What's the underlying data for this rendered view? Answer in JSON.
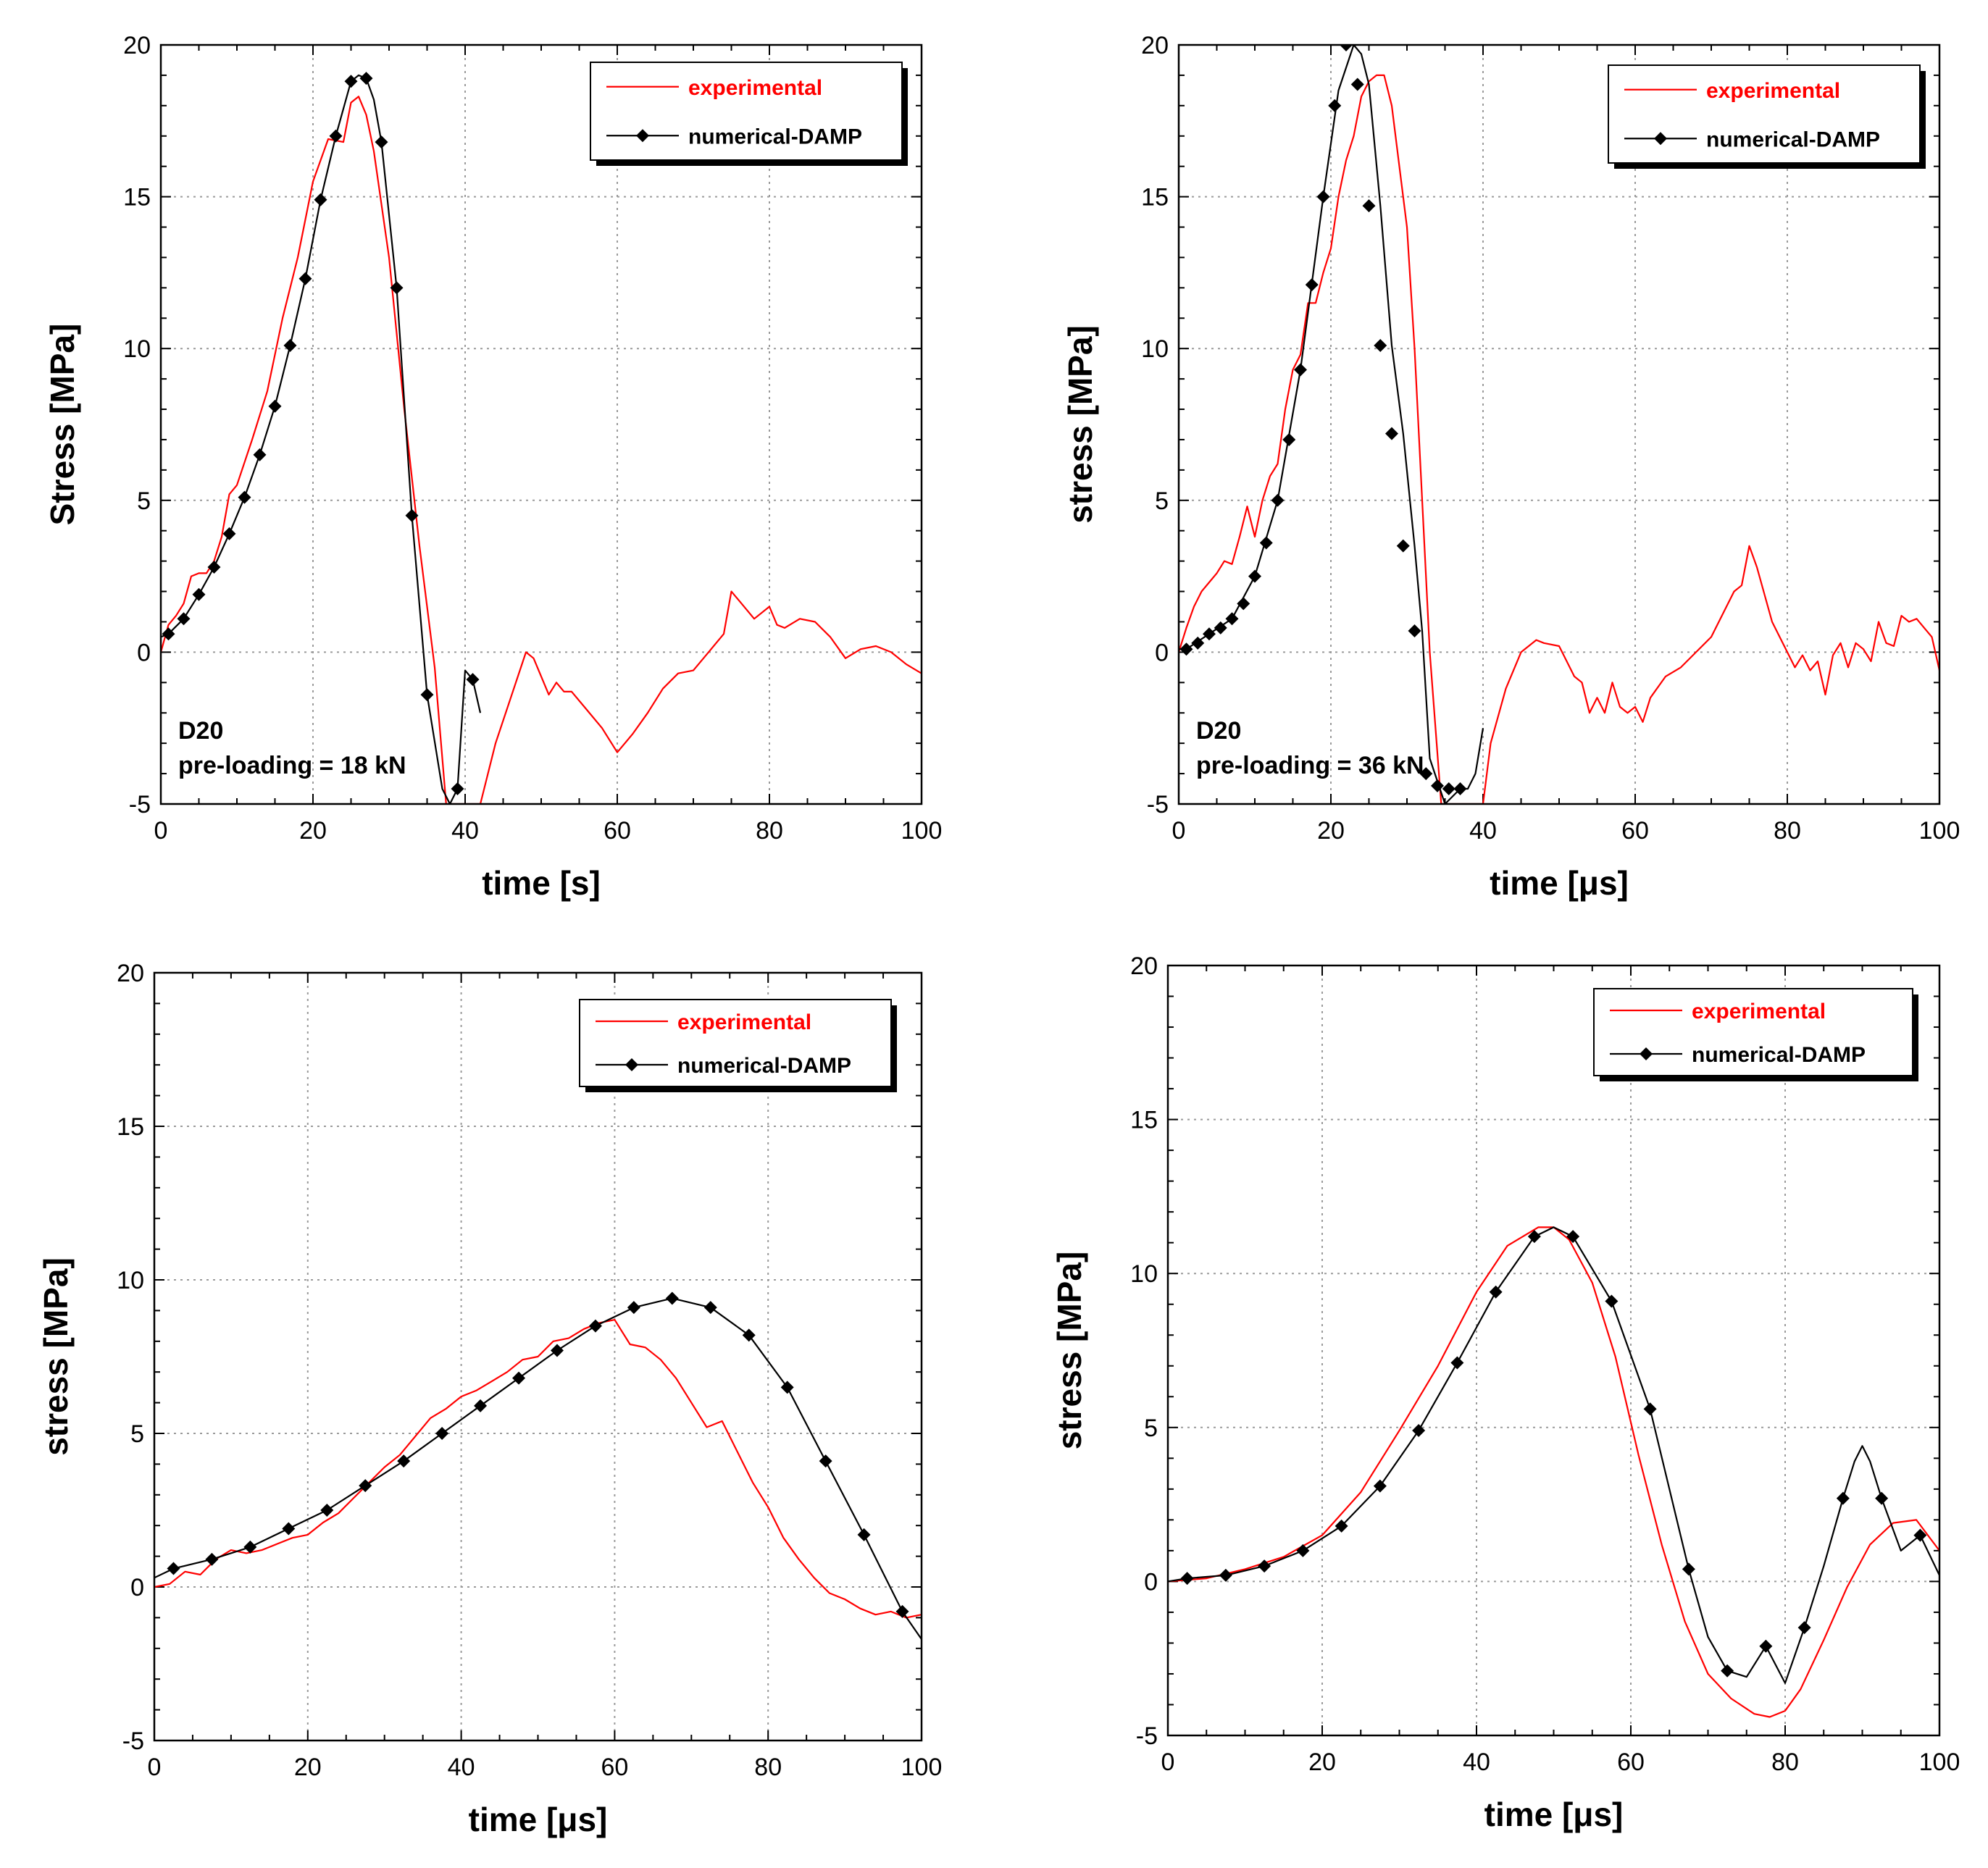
{
  "figure": {
    "description_panels": 4
  },
  "colors": {
    "experimental": "#ff0000",
    "numerical": "#000000",
    "grid": "#9a9a9a",
    "legend_shadow": "#000000"
  },
  "chart_data": [
    {
      "type": "line",
      "xlabel": "time [s]",
      "ylabel": "Stress [MPa]",
      "xlim": [
        0,
        100
      ],
      "ylim": [
        -5,
        20
      ],
      "xticks": [
        "0",
        "20",
        "40",
        "60",
        "80",
        "100"
      ],
      "yticks": [
        "-5",
        "0",
        "5",
        "10",
        "15",
        "20"
      ],
      "legend": [
        "experimental",
        "numerical-DAMP"
      ],
      "legend_position": "top-right",
      "annotation": [
        "D20",
        "pre-loading = 18 kN"
      ],
      "series": [
        {
          "name": "experimental",
          "x": [
            0,
            1,
            2,
            3,
            4,
            5,
            6,
            7,
            8,
            9,
            10,
            12,
            14,
            16,
            18,
            20,
            22,
            24,
            25,
            26,
            27,
            28,
            30,
            32,
            34,
            36,
            37.5,
            42,
            44,
            46,
            48,
            49,
            50,
            51,
            52,
            53,
            54,
            56,
            58,
            60,
            62,
            64,
            66,
            68,
            70,
            72,
            74,
            75,
            76,
            78,
            80,
            81,
            82,
            84,
            86,
            88,
            90,
            92,
            94,
            96,
            98,
            100
          ],
          "y": [
            0,
            0.9,
            1.2,
            1.6,
            2.5,
            2.6,
            2.6,
            3.0,
            3.8,
            5.2,
            5.5,
            7.0,
            8.6,
            11.0,
            13.0,
            15.5,
            16.9,
            16.8,
            18.1,
            18.3,
            17.7,
            16.5,
            13.0,
            8.0,
            3.5,
            -0.5,
            -5,
            -5,
            -3.0,
            -1.5,
            0,
            -0.2,
            -0.8,
            -1.4,
            -1.0,
            -1.3,
            -1.3,
            -1.9,
            -2.5,
            -3.3,
            -2.7,
            -2.0,
            -1.2,
            -0.7,
            -0.6,
            0,
            0.6,
            2.0,
            1.7,
            1.1,
            1.5,
            0.9,
            0.8,
            1.1,
            1.0,
            0.5,
            -0.2,
            0.1,
            0.2,
            0,
            -0.4,
            -0.7
          ]
        },
        {
          "name": "numerical-DAMP",
          "markers": true,
          "x": [
            1,
            3,
            5,
            7,
            9,
            11,
            13,
            15,
            17,
            19,
            21,
            23,
            25,
            27,
            29,
            31,
            33,
            35,
            39,
            41
          ],
          "y": [
            0.6,
            1.1,
            1.9,
            2.8,
            3.9,
            5.1,
            6.5,
            8.1,
            10.1,
            12.3,
            14.9,
            17.0,
            18.8,
            18.9,
            16.8,
            12.0,
            4.5,
            -1.4,
            -4.5,
            -0.9
          ],
          "line_x": [
            0,
            1,
            3,
            5,
            7,
            9,
            11,
            13,
            15,
            17,
            19,
            21,
            23,
            25,
            26,
            27,
            28,
            29,
            31,
            33,
            35,
            37,
            38,
            39,
            40,
            41,
            42
          ],
          "line_y": [
            0.5,
            0.6,
            1.1,
            1.9,
            2.8,
            3.9,
            5.1,
            6.5,
            8.1,
            10.1,
            12.3,
            14.9,
            17.0,
            18.8,
            19.0,
            18.9,
            18.2,
            16.8,
            12.0,
            4.5,
            -1.4,
            -4.5,
            -5,
            -4.5,
            -0.6,
            -0.9,
            -2.0
          ]
        }
      ]
    },
    {
      "type": "line",
      "xlabel": "time [μs]",
      "ylabel": "stress [MPa]",
      "xlim": [
        0,
        100
      ],
      "ylim": [
        -5,
        20
      ],
      "xticks": [
        "0",
        "20",
        "40",
        "60",
        "80",
        "100"
      ],
      "yticks": [
        "-5",
        "0",
        "5",
        "10",
        "15",
        "20"
      ],
      "legend": [
        "experimental",
        "numerical-DAMP"
      ],
      "legend_position": "top-right",
      "annotation": [
        "D20",
        "pre-loading = 36 kN"
      ],
      "series": [
        {
          "name": "experimental",
          "x": [
            0,
            1,
            2,
            3,
            4,
            5,
            6,
            7,
            8,
            9,
            10,
            11,
            12,
            13,
            14,
            15,
            16,
            17,
            18,
            19,
            20,
            21,
            22,
            23,
            24,
            25,
            26,
            27,
            28,
            29,
            30,
            31,
            32,
            33,
            34.5,
            40,
            41,
            43,
            45,
            47,
            48,
            50,
            52,
            53,
            54,
            55,
            56,
            57,
            58,
            59,
            60,
            61,
            62,
            64,
            66,
            68,
            70,
            72,
            73,
            74,
            75,
            76,
            78,
            80,
            81,
            82,
            83,
            84,
            85,
            86,
            87,
            88,
            89,
            90,
            91,
            92,
            93,
            94,
            95,
            96,
            97,
            98,
            99,
            100
          ],
          "y": [
            0,
            0.8,
            1.5,
            2.0,
            2.3,
            2.6,
            3.0,
            2.9,
            3.8,
            4.8,
            3.8,
            5.0,
            5.8,
            6.2,
            8.0,
            9.3,
            9.8,
            11.5,
            11.5,
            12.5,
            13.3,
            15.0,
            16.2,
            17.0,
            18.3,
            18.8,
            19.0,
            19.0,
            18.0,
            16.0,
            14.0,
            10.0,
            5.0,
            0.0,
            -5,
            -5,
            -3.0,
            -1.2,
            0,
            0.4,
            0.3,
            0.2,
            -0.8,
            -1.0,
            -2.0,
            -1.5,
            -2.0,
            -1.0,
            -1.8,
            -2.0,
            -1.8,
            -2.3,
            -1.5,
            -0.8,
            -0.5,
            0,
            0.5,
            1.5,
            2.0,
            2.2,
            3.5,
            2.8,
            1.0,
            0,
            -0.5,
            -0.1,
            -0.6,
            -0.3,
            -1.4,
            -0.1,
            0.3,
            -0.5,
            0.3,
            0.1,
            -0.3,
            1.0,
            0.3,
            0.2,
            1.2,
            1.0,
            1.1,
            0.8,
            0.5,
            -0.6
          ]
        },
        {
          "name": "numerical-DAMP",
          "markers": true,
          "x": [
            1,
            2.5,
            4,
            5.5,
            7,
            8.5,
            10,
            11.5,
            13,
            14.5,
            16,
            17.5,
            19,
            20.5,
            22,
            23.5,
            25,
            26.5,
            28,
            29.5,
            31,
            32.5,
            34,
            35.5,
            37
          ],
          "y": [
            0.1,
            0.3,
            0.6,
            0.8,
            1.1,
            1.6,
            2.5,
            3.6,
            5.0,
            7.0,
            9.3,
            12.1,
            15.0,
            18.0,
            20.0,
            18.7,
            14.7,
            10.1,
            7.2,
            3.5,
            0.7,
            -4.0,
            -4.4,
            -4.5,
            -4.5
          ],
          "line_x": [
            0,
            1,
            4,
            7,
            10,
            13,
            16,
            19,
            21,
            23,
            24,
            25,
            26.5,
            28,
            29.5,
            31,
            32,
            33,
            35,
            37,
            38,
            39,
            40
          ],
          "line_y": [
            0.1,
            0.1,
            0.6,
            1.1,
            2.5,
            5.0,
            9.3,
            15.0,
            18.5,
            20.0,
            19.7,
            18.7,
            14.7,
            10.1,
            7.2,
            3.5,
            0.7,
            -3.5,
            -5,
            -4.5,
            -4.5,
            -4.0,
            -2.5
          ]
        }
      ]
    },
    {
      "type": "line",
      "xlabel": "time [μs]",
      "ylabel": "stress [MPa]",
      "xlim": [
        0,
        100
      ],
      "ylim": [
        -5,
        20
      ],
      "xticks": [
        "0",
        "20",
        "40",
        "60",
        "80",
        "100"
      ],
      "yticks": [
        "-5",
        "0",
        "5",
        "10",
        "15",
        "20"
      ],
      "legend": [
        "experimental",
        "numerical-DAMP"
      ],
      "legend_position": "top-right",
      "series": [
        {
          "name": "experimental",
          "x": [
            0,
            2,
            4,
            6,
            8,
            10,
            12,
            14,
            16,
            18,
            20,
            22,
            24,
            26,
            28,
            30,
            32,
            34,
            36,
            38,
            40,
            42,
            44,
            46,
            48,
            50,
            52,
            54,
            56,
            58,
            60,
            61,
            62,
            64,
            66,
            68,
            70,
            72,
            74,
            76,
            78,
            80,
            82,
            84,
            86,
            88,
            90,
            92,
            94,
            96,
            98,
            100
          ],
          "y": [
            0,
            0.1,
            0.5,
            0.4,
            0.9,
            1.2,
            1.1,
            1.2,
            1.4,
            1.6,
            1.7,
            2.1,
            2.4,
            2.9,
            3.4,
            3.9,
            4.3,
            4.9,
            5.5,
            5.8,
            6.2,
            6.4,
            6.7,
            7.0,
            7.4,
            7.5,
            8.0,
            8.1,
            8.4,
            8.6,
            8.7,
            8.3,
            7.9,
            7.8,
            7.4,
            6.8,
            6.0,
            5.2,
            5.4,
            4.4,
            3.4,
            2.6,
            1.6,
            0.9,
            0.3,
            -0.2,
            -0.4,
            -0.7,
            -0.9,
            -0.8,
            -1.0,
            -0.9
          ]
        },
        {
          "name": "numerical-DAMP",
          "markers": true,
          "x": [
            2.5,
            7.5,
            12.5,
            17.5,
            22.5,
            27.5,
            32.5,
            37.5,
            42.5,
            47.5,
            52.5,
            57.5,
            62.5,
            67.5,
            72.5,
            77.5,
            82.5,
            87.5,
            92.5,
            97.5
          ],
          "y": [
            0.6,
            0.9,
            1.3,
            1.9,
            2.5,
            3.3,
            4.1,
            5.0,
            5.9,
            6.8,
            7.7,
            8.5,
            9.1,
            9.4,
            9.1,
            8.2,
            6.5,
            4.1,
            1.7,
            -0.8
          ],
          "line_x": [
            0,
            2.5,
            7.5,
            12.5,
            17.5,
            22.5,
            27.5,
            32.5,
            37.5,
            42.5,
            47.5,
            52.5,
            57.5,
            62.5,
            67.5,
            72.5,
            77.5,
            82.5,
            87.5,
            92.5,
            97.5,
            100
          ],
          "line_y": [
            0.3,
            0.6,
            0.9,
            1.3,
            1.9,
            2.5,
            3.3,
            4.1,
            5.0,
            5.9,
            6.8,
            7.7,
            8.5,
            9.1,
            9.4,
            9.1,
            8.2,
            6.5,
            4.1,
            1.7,
            -0.8,
            -1.7
          ]
        }
      ]
    },
    {
      "type": "line",
      "xlabel": "time [μs]",
      "ylabel": "stress [MPa]",
      "xlim": [
        0,
        100
      ],
      "ylim": [
        -5,
        20
      ],
      "xticks": [
        "0",
        "20",
        "40",
        "60",
        "80",
        "100"
      ],
      "yticks": [
        "-5",
        "0",
        "5",
        "10",
        "15",
        "20"
      ],
      "legend": [
        "experimental",
        "numerical-DAMP"
      ],
      "legend_position": "top-right",
      "series": [
        {
          "name": "experimental",
          "x": [
            0,
            5,
            10,
            15,
            20,
            25,
            30,
            35,
            40,
            44,
            48,
            50,
            52,
            55,
            58,
            61,
            64,
            67,
            70,
            73,
            76,
            78,
            80,
            82,
            85,
            88,
            91,
            94,
            97,
            100
          ],
          "y": [
            0,
            0.1,
            0.4,
            0.8,
            1.5,
            2.9,
            4.9,
            7.0,
            9.4,
            10.9,
            11.5,
            11.5,
            11.1,
            9.7,
            7.3,
            4.1,
            1.2,
            -1.3,
            -3.0,
            -3.8,
            -4.3,
            -4.4,
            -4.2,
            -3.5,
            -1.9,
            -0.2,
            1.2,
            1.9,
            2.0,
            1.0
          ]
        },
        {
          "name": "numerical-DAMP",
          "markers": true,
          "x": [
            2.5,
            7.5,
            12.5,
            17.5,
            22.5,
            27.5,
            32.5,
            37.5,
            42.5,
            47.5,
            52.5,
            57.5,
            62.5,
            67.5,
            72.5,
            77.5,
            82.5,
            87.5,
            92.5,
            97.5
          ],
          "y": [
            0.1,
            0.2,
            0.5,
            1.0,
            1.8,
            3.1,
            4.9,
            7.1,
            9.4,
            11.2,
            11.2,
            9.1,
            5.6,
            0.4,
            -2.9,
            -2.1,
            -1.5,
            2.7,
            2.7,
            1.5
          ],
          "line_x": [
            0,
            2.5,
            7.5,
            12.5,
            17.5,
            22.5,
            27.5,
            32.5,
            37.5,
            42.5,
            47.5,
            50,
            52.5,
            57.5,
            62.5,
            67.5,
            70,
            72.5,
            75,
            77.5,
            80,
            82.5,
            85,
            87.5,
            89,
            90,
            91,
            92.5,
            95,
            97.5,
            100
          ],
          "line_y": [
            0,
            0.1,
            0.2,
            0.5,
            1.0,
            1.8,
            3.1,
            4.9,
            7.1,
            9.4,
            11.2,
            11.5,
            11.2,
            9.1,
            5.6,
            0.4,
            -1.8,
            -2.9,
            -3.1,
            -2.1,
            -3.3,
            -1.5,
            0.5,
            2.7,
            3.9,
            4.4,
            3.9,
            2.7,
            1.0,
            1.5,
            0.2
          ]
        }
      ]
    }
  ]
}
